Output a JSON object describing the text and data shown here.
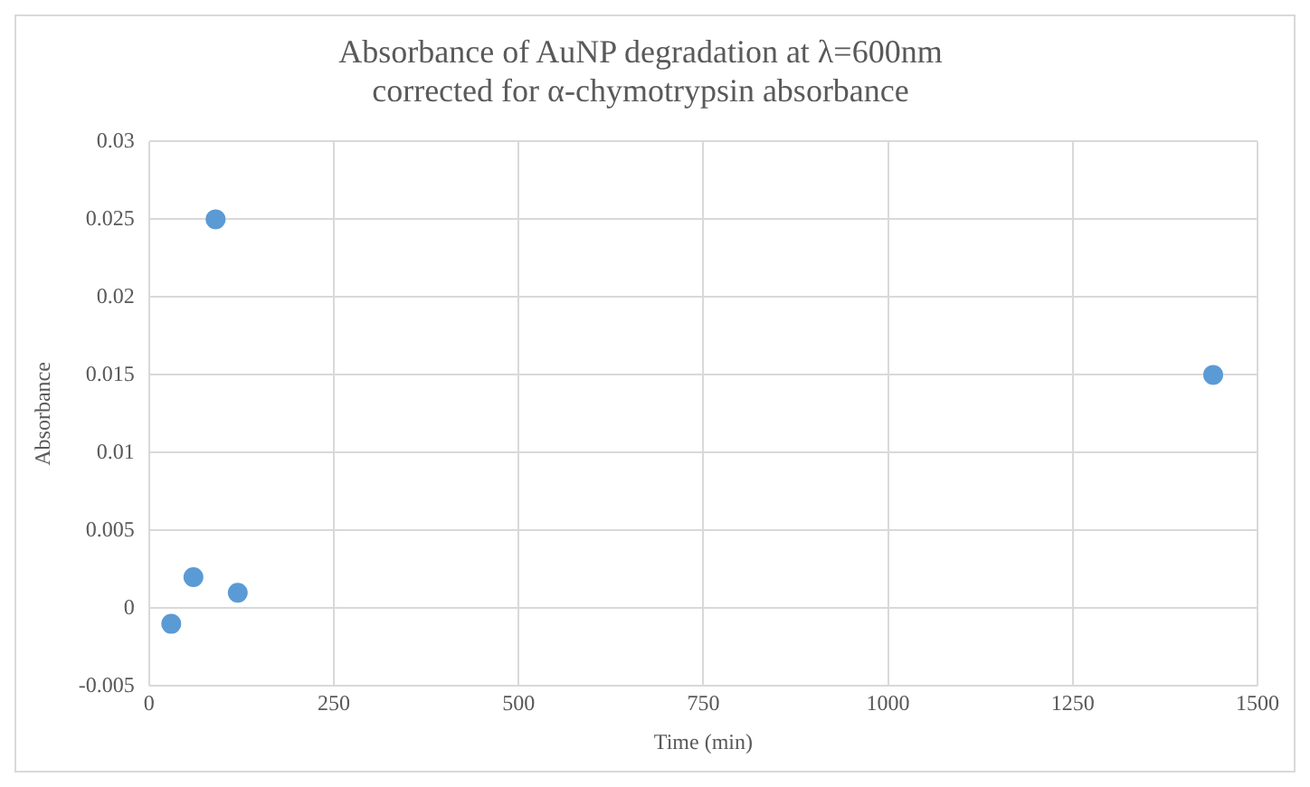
{
  "chart_data": {
    "type": "scatter",
    "title": "Absorbance of AuNP degradation at λ=600nm",
    "subtitle": "corrected for α-chymotrypsin absorbance",
    "xlabel": "Time (min)",
    "ylabel": "Absorbance",
    "x": [
      30,
      60,
      90,
      120,
      1440
    ],
    "series": [
      {
        "color": "#5b9bd5",
        "values": [
          -0.001,
          0.002,
          0.025,
          0.001,
          0.015
        ]
      }
    ],
    "xlim": [
      0,
      1500
    ],
    "xticks": [
      0,
      250,
      500,
      750,
      1000,
      1250,
      1500
    ],
    "ylim": [
      -0.005,
      0.03
    ],
    "yticks": [
      -0.005,
      0,
      0.005,
      0.01,
      0.015,
      0.02,
      0.025,
      0.03
    ],
    "grid": true,
    "legend": false,
    "marker": "circle"
  }
}
